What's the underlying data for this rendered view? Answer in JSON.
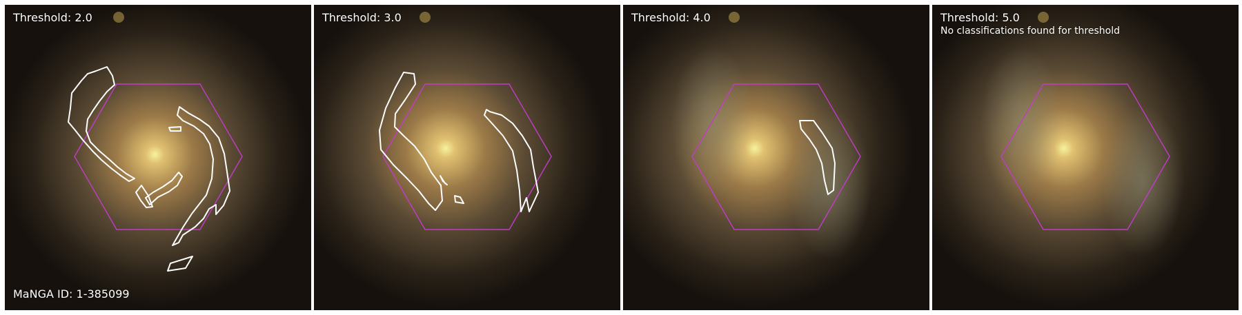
{
  "colors": {
    "background": "#1a1410",
    "galaxy_core": "#f4f09a",
    "galaxy_bulge": "#c9a25a",
    "galaxy_arms": "#8a8a6e",
    "hexagon_stroke": "#c23cc8",
    "contour_stroke": "#ffffff"
  },
  "panels": [
    {
      "threshold_label": "Threshold: 2.0",
      "note": "",
      "footer": "MaNGA ID: 1-385099"
    },
    {
      "threshold_label": "Threshold: 3.0",
      "note": "",
      "footer": ""
    },
    {
      "threshold_label": "Threshold: 4.0",
      "note": "",
      "footer": ""
    },
    {
      "threshold_label": "Threshold: 5.0",
      "note": "No classifications found for threshold",
      "footer": ""
    }
  ]
}
